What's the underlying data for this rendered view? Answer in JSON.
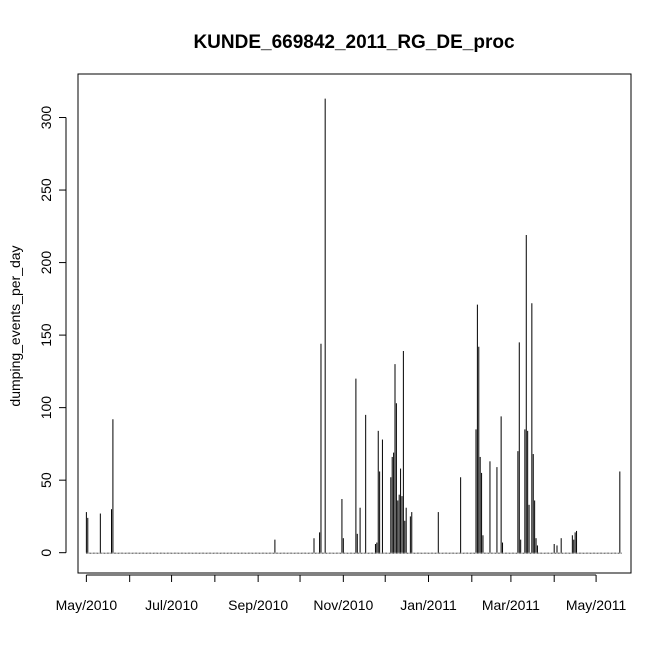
{
  "chart_data": {
    "type": "bar",
    "title": "KUNDE_669842_2011_RG_DE_proc",
    "xlabel": "",
    "ylabel": "dumping_events_per_day",
    "ylim": [
      -14,
      330
    ],
    "yticks": [
      0,
      50,
      100,
      150,
      200,
      250,
      300
    ],
    "x_date_range": [
      "2010-04-25",
      "2011-05-26"
    ],
    "xticks": [
      {
        "date": "2010-05-01",
        "label": "May/2010"
      },
      {
        "date": "2010-06-01",
        "label": ""
      },
      {
        "date": "2010-07-01",
        "label": "Jul/2010"
      },
      {
        "date": "2010-08-01",
        "label": ""
      },
      {
        "date": "2010-09-01",
        "label": "Sep/2010"
      },
      {
        "date": "2010-10-01",
        "label": ""
      },
      {
        "date": "2010-11-01",
        "label": "Nov/2010"
      },
      {
        "date": "2010-12-01",
        "label": ""
      },
      {
        "date": "2011-01-01",
        "label": "Jan/2011"
      },
      {
        "date": "2011-02-01",
        "label": ""
      },
      {
        "date": "2011-03-01",
        "label": "Mar/2011"
      },
      {
        "date": "2011-04-01",
        "label": ""
      },
      {
        "date": "2011-05-01",
        "label": "May/2011"
      }
    ],
    "series_start": "2010-05-01",
    "series_end": "2011-05-19",
    "x": [
      "2010-05-01",
      "2010-05-02",
      "2010-05-11",
      "2010-05-19",
      "2010-05-20",
      "2010-09-13",
      "2010-10-11",
      "2010-10-15",
      "2010-10-16",
      "2010-10-19",
      "2010-10-31",
      "2010-11-01",
      "2010-11-10",
      "2010-11-11",
      "2010-11-13",
      "2010-11-17",
      "2010-11-24",
      "2010-11-25",
      "2010-11-26",
      "2010-11-27",
      "2010-11-29",
      "2010-12-05",
      "2010-12-06",
      "2010-12-07",
      "2010-12-08",
      "2010-12-09",
      "2010-12-10",
      "2010-12-11",
      "2010-12-12",
      "2010-12-13",
      "2010-12-14",
      "2010-12-15",
      "2010-12-16",
      "2010-12-19",
      "2010-12-20",
      "2011-01-08",
      "2011-01-24",
      "2011-02-04",
      "2011-02-05",
      "2011-02-06",
      "2011-02-07",
      "2011-02-08",
      "2011-02-09",
      "2011-02-14",
      "2011-02-19",
      "2011-02-22",
      "2011-02-23",
      "2011-03-06",
      "2011-03-07",
      "2011-03-08",
      "2011-03-11",
      "2011-03-12",
      "2011-03-13",
      "2011-03-14",
      "2011-03-16",
      "2011-03-17",
      "2011-03-18",
      "2011-03-19",
      "2011-03-20",
      "2011-04-01",
      "2011-04-03",
      "2011-04-06",
      "2011-04-14",
      "2011-04-15",
      "2011-04-16",
      "2011-04-17",
      "2011-05-18"
    ],
    "values": [
      28,
      24,
      27,
      30,
      92,
      9,
      10,
      14,
      144,
      313,
      37,
      10,
      120,
      13,
      31,
      95,
      6,
      7,
      84,
      56,
      78,
      52,
      66,
      69,
      130,
      103,
      36,
      40,
      58,
      39,
      139,
      22,
      31,
      25,
      28,
      28,
      52,
      85,
      171,
      142,
      66,
      55,
      12,
      63,
      59,
      94,
      7,
      70,
      145,
      9,
      85,
      219,
      84,
      33,
      172,
      68,
      36,
      10,
      5,
      6,
      5,
      10,
      12,
      9,
      14,
      15,
      56
    ]
  }
}
